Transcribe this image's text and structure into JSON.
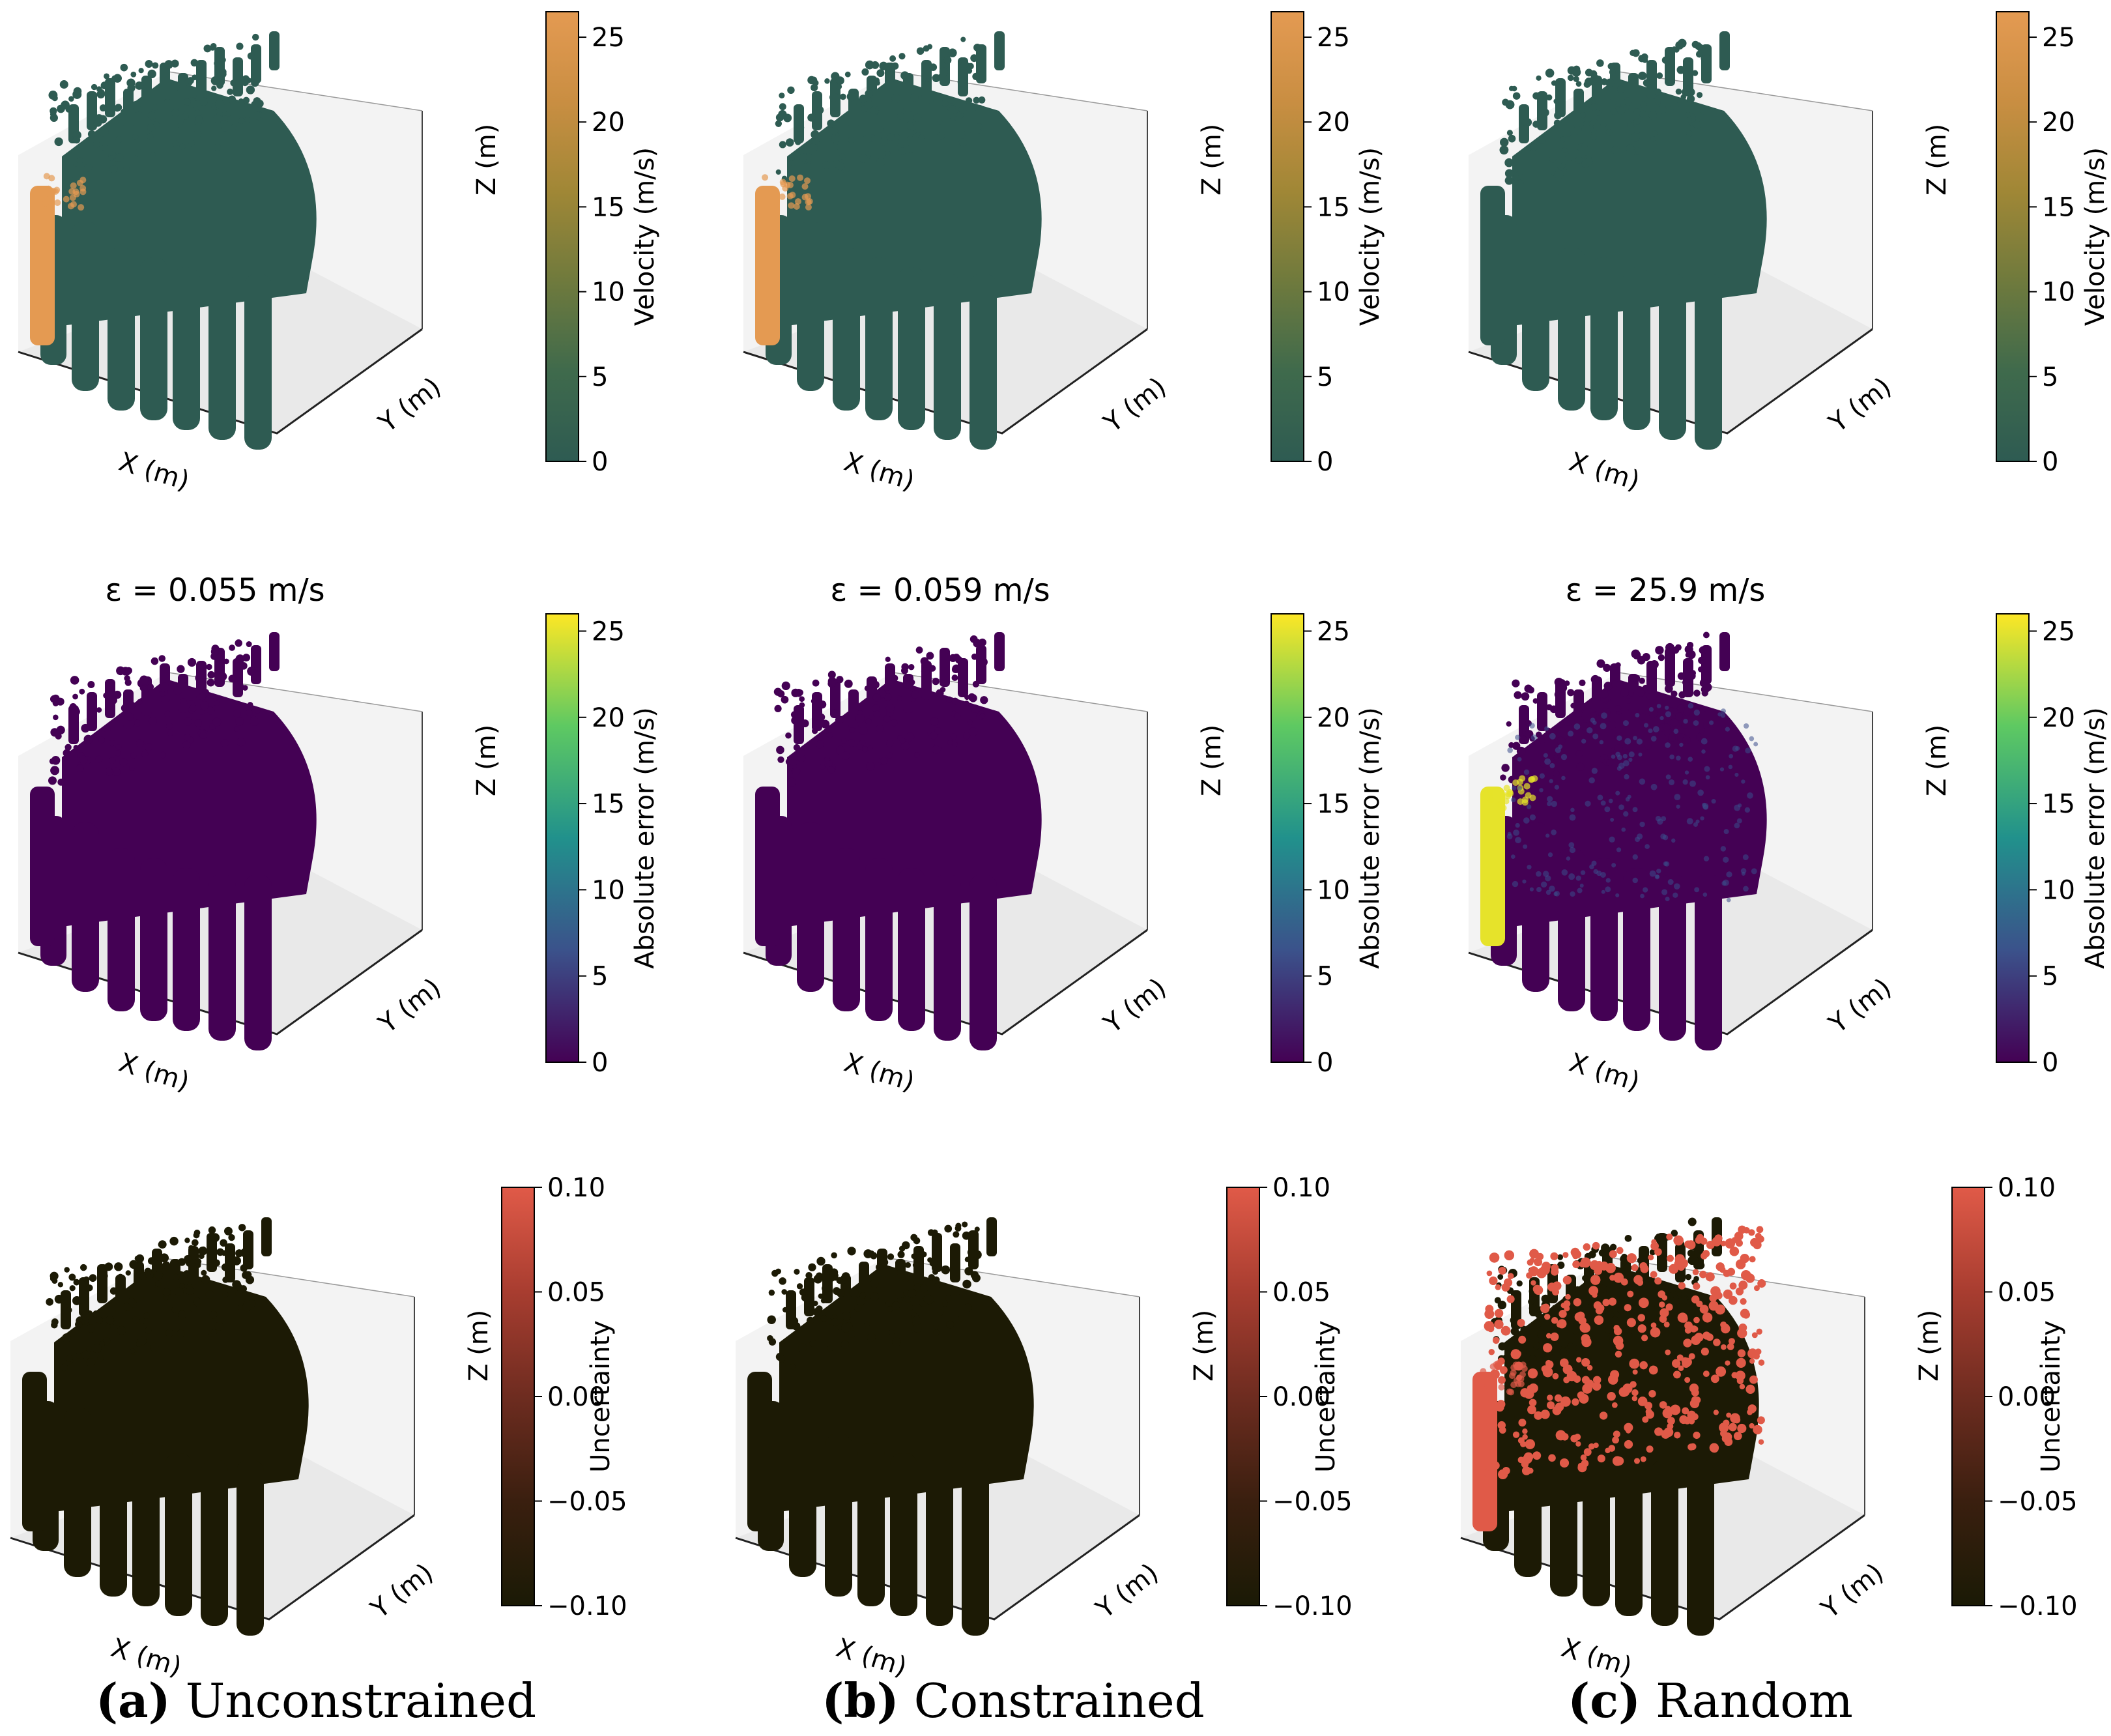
{
  "axis_labels": {
    "x": "X (m)",
    "y": "Y (m)",
    "z": "Z (m)"
  },
  "colorbars": {
    "velocity": {
      "label": "Velocity (m/s)",
      "ticks": [
        "0",
        "5",
        "10",
        "15",
        "20",
        "25"
      ],
      "range": [
        0,
        26.5
      ],
      "colors": [
        "#2e5b52",
        "#3f6a4c",
        "#6f7a3d",
        "#a08736",
        "#c98e42",
        "#e49a52"
      ]
    },
    "error": {
      "label": "Absolute error (m/s)",
      "ticks": [
        "0",
        "5",
        "10",
        "15",
        "20",
        "25"
      ],
      "range": [
        0,
        26
      ],
      "colors": [
        "#440154",
        "#3b528b",
        "#21918c",
        "#5ec962",
        "#fde725"
      ]
    },
    "uncertainty": {
      "label": "Uncertainty",
      "ticks": [
        "−0.10",
        "−0.05",
        "0.00",
        "0.05",
        "0.10"
      ],
      "range": [
        -0.1,
        0.1
      ],
      "colors": [
        "#1a1a05",
        "#3a1f0f",
        "#6e2c20",
        "#a83d30",
        "#e05a48"
      ]
    }
  },
  "colors": {
    "velocity_body": "#2e5b52",
    "velocity_high": "#e49a52",
    "error_body": "#440154",
    "error_high": "#e6e32a",
    "uncertainty_body": "#1c1a05",
    "uncertainty_high": "#e05a48"
  },
  "errors": [
    "ε = 0.055 m/s",
    "ε = 0.059 m/s",
    "ε = 25.9 m/s"
  ],
  "captions": [
    {
      "letter": "(a)",
      "text": "Unconstrained"
    },
    {
      "letter": "(b)",
      "text": "Constrained"
    },
    {
      "letter": "(c)",
      "text": "Random"
    }
  ],
  "chart_data": [
    {
      "type": "scatter",
      "panel": "a-velocity",
      "colorbar": "velocity",
      "xlabel": "X (m)",
      "ylabel": "Y (m)",
      "zlabel": "Z (m)",
      "clabel": "Velocity (m/s)",
      "clim": [
        0,
        26.5
      ],
      "title": ""
    },
    {
      "type": "scatter",
      "panel": "b-velocity",
      "colorbar": "velocity",
      "xlabel": "X (m)",
      "ylabel": "Y (m)",
      "zlabel": "Z (m)",
      "clabel": "Velocity (m/s)",
      "clim": [
        0,
        26.5
      ],
      "title": ""
    },
    {
      "type": "scatter",
      "panel": "c-velocity",
      "colorbar": "velocity",
      "xlabel": "X (m)",
      "ylabel": "Y (m)",
      "zlabel": "Z (m)",
      "clabel": "Velocity (m/s)",
      "clim": [
        0,
        26.5
      ],
      "title": ""
    },
    {
      "type": "scatter",
      "panel": "a-error",
      "colorbar": "error",
      "xlabel": "X (m)",
      "ylabel": "Y (m)",
      "zlabel": "Z (m)",
      "clabel": "Absolute error (m/s)",
      "clim": [
        0,
        26
      ],
      "title": "ε = 0.055 m/s"
    },
    {
      "type": "scatter",
      "panel": "b-error",
      "colorbar": "error",
      "xlabel": "X (m)",
      "ylabel": "Y (m)",
      "zlabel": "Z (m)",
      "clabel": "Absolute error (m/s)",
      "clim": [
        0,
        26
      ],
      "title": "ε = 0.059 m/s"
    },
    {
      "type": "scatter",
      "panel": "c-error",
      "colorbar": "error",
      "xlabel": "X (m)",
      "ylabel": "Y (m)",
      "zlabel": "Z (m)",
      "clabel": "Absolute error (m/s)",
      "clim": [
        0,
        26
      ],
      "title": "ε = 25.9 m/s"
    },
    {
      "type": "scatter",
      "panel": "a-uncertainty",
      "colorbar": "uncertainty",
      "xlabel": "X (m)",
      "ylabel": "Y (m)",
      "zlabel": "Z (m)",
      "clabel": "Uncertainty",
      "clim": [
        -0.1,
        0.1
      ],
      "title": ""
    },
    {
      "type": "scatter",
      "panel": "b-uncertainty",
      "colorbar": "uncertainty",
      "xlabel": "X (m)",
      "ylabel": "Y (m)",
      "zlabel": "Z (m)",
      "clabel": "Uncertainty",
      "clim": [
        -0.1,
        0.1
      ],
      "title": ""
    },
    {
      "type": "scatter",
      "panel": "c-uncertainty",
      "colorbar": "uncertainty",
      "xlabel": "X (m)",
      "ylabel": "Y (m)",
      "zlabel": "Z (m)",
      "clabel": "Uncertainty",
      "clim": [
        -0.1,
        0.1
      ],
      "title": ""
    }
  ]
}
